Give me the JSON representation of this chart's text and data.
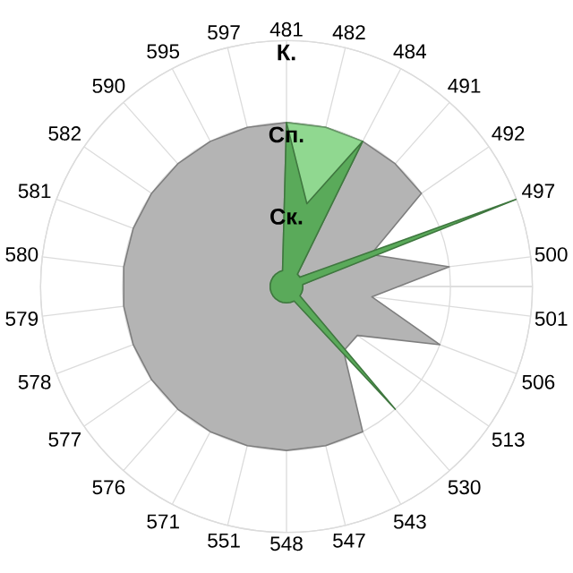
{
  "chart_data": {
    "type": "radar",
    "categories": [
      "481",
      "482",
      "484",
      "491",
      "492",
      "497",
      "500",
      "501",
      "506",
      "513",
      "530",
      "543",
      "547",
      "548",
      "551",
      "571",
      "576",
      "577",
      "578",
      "579",
      "580",
      "581",
      "582",
      "590",
      "595",
      "597"
    ],
    "ylim": [
      0,
      3
    ],
    "yticks": [
      {
        "value": 1,
        "label": "Ск."
      },
      {
        "value": 2,
        "label": "Сп."
      },
      {
        "value": 3,
        "label": "К."
      }
    ],
    "grid": true,
    "series": [
      {
        "color": "#b4b4b4",
        "values": [
          2,
          2,
          2,
          2,
          2,
          1.1,
          2,
          1.05,
          2,
          1.05,
          1.05,
          2,
          2,
          2,
          2,
          2,
          2,
          2,
          2,
          2,
          2,
          2,
          2,
          2,
          2,
          2
        ]
      },
      {
        "color": "#90d890",
        "values": [
          2,
          2,
          2,
          0.2,
          0.2,
          1.3,
          0.2,
          0.2,
          0.2,
          0.2,
          0.2,
          0.2,
          0.2,
          0.2,
          0.2,
          0.2,
          0.2,
          0.2,
          0.2,
          0.2,
          0.2,
          0.2,
          0.2,
          0.2,
          0.2,
          0.2
        ]
      },
      {
        "color": "#5aaa5a",
        "values": [
          2,
          1.04,
          2,
          0.2,
          0.2,
          3,
          0.2,
          0.2,
          0.2,
          0.2,
          2,
          0.2,
          0.2,
          0.2,
          0.2,
          0.2,
          0.2,
          0.2,
          0.2,
          0.2,
          0.2,
          0.2,
          0.2,
          0.2,
          0.2,
          0.2
        ]
      }
    ]
  }
}
